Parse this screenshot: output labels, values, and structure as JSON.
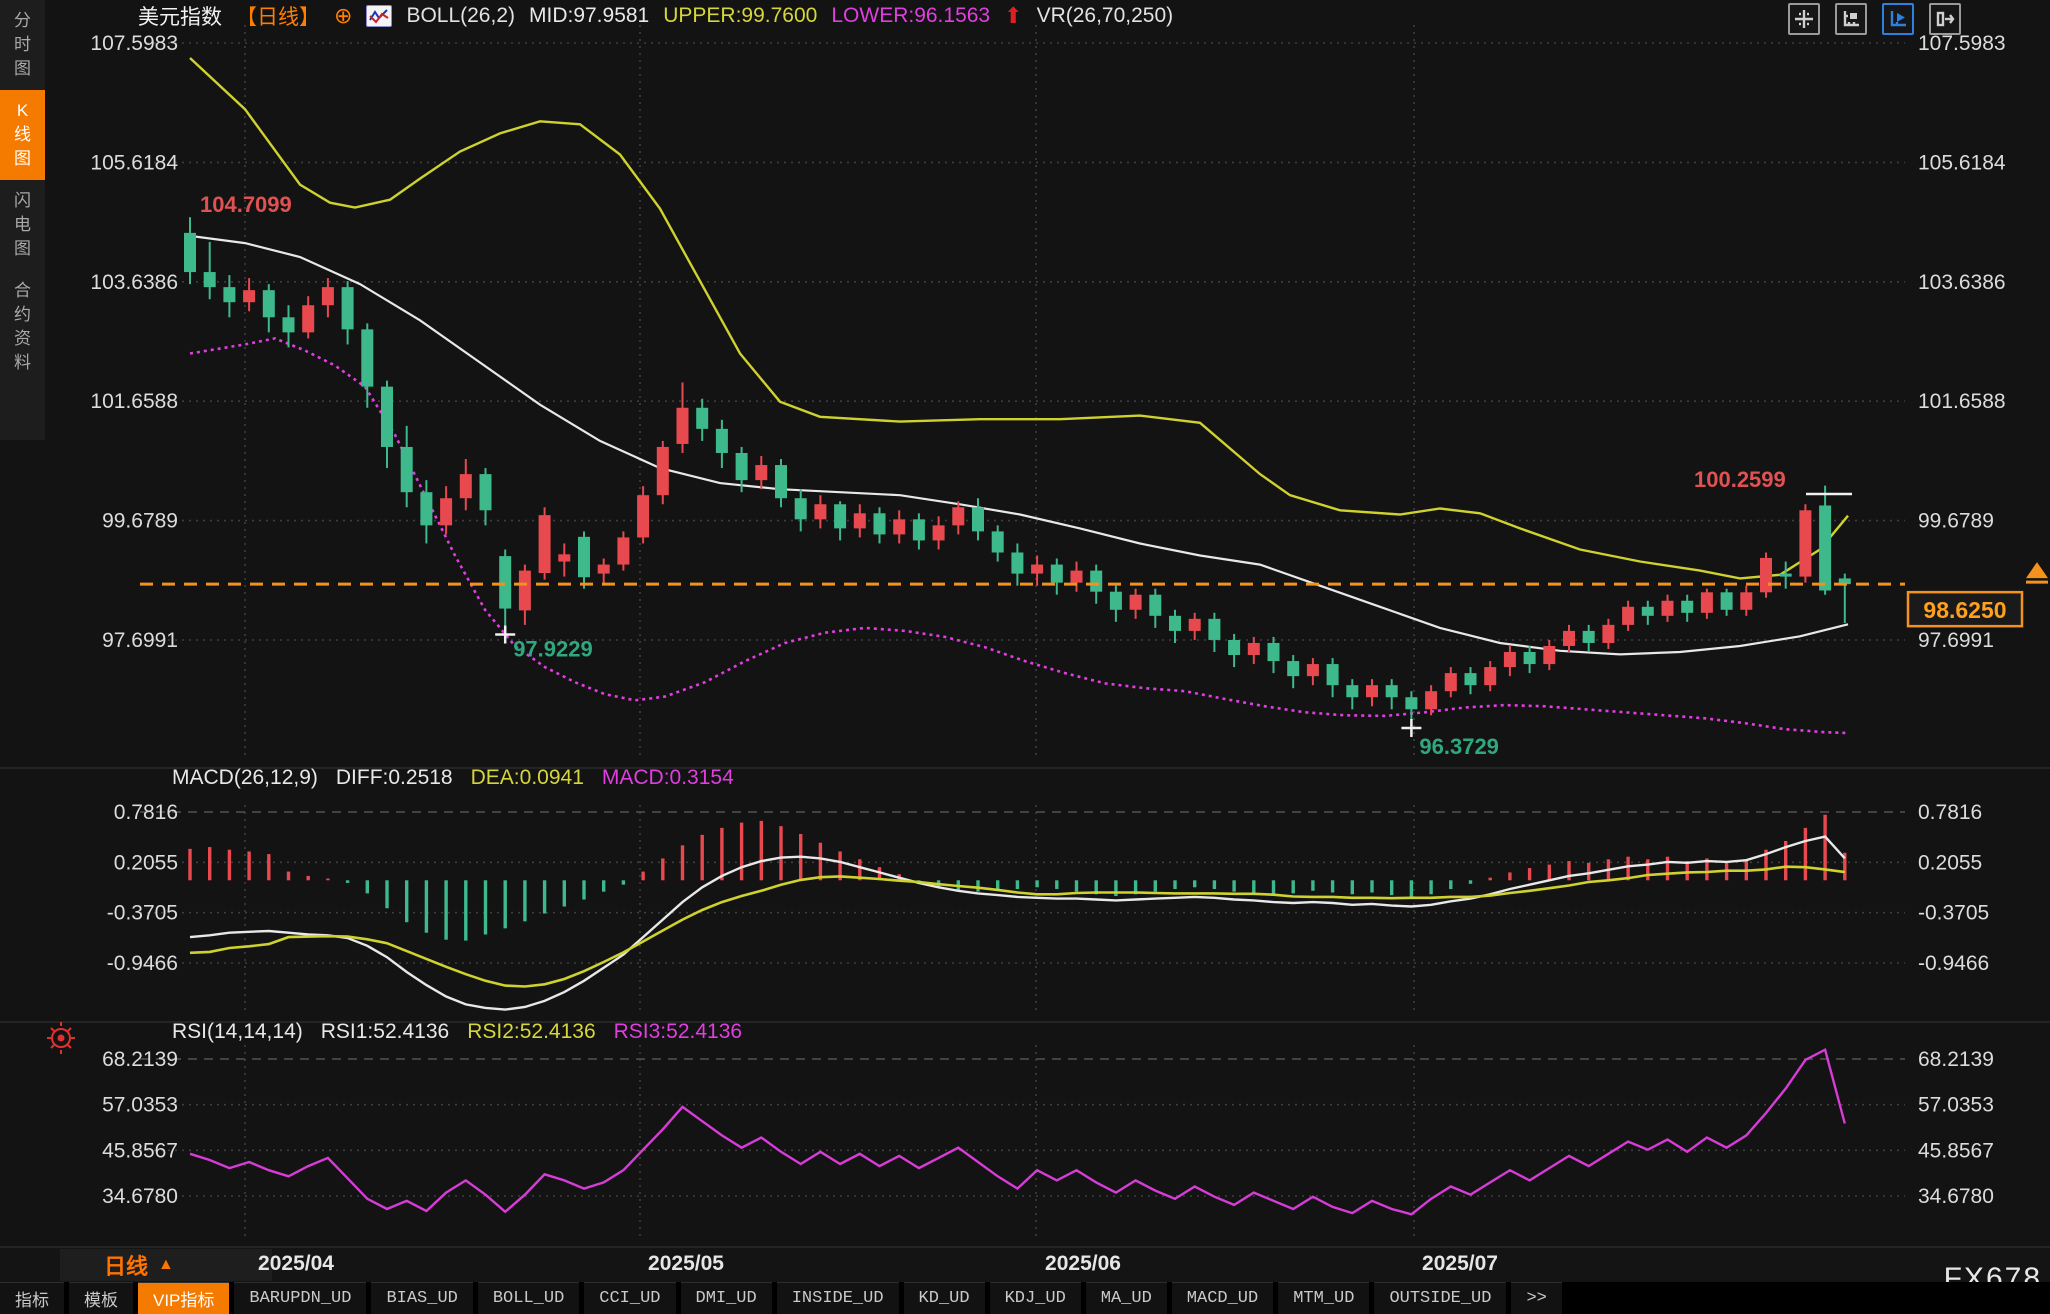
{
  "header": {
    "symbol": "美元指数",
    "period_tag": "【日线】",
    "boll_label": "BOLL(26,2)",
    "mid_label": "MID:97.9581",
    "upper_label": "UPPER:99.7600",
    "lower_label": "LOWER:96.1563",
    "vr_label": "VR(26,70,250)"
  },
  "toolbar": {
    "icons": [
      {
        "name": "crosshair-icon",
        "active": false
      },
      {
        "name": "axis-scale-icon",
        "active": false
      },
      {
        "name": "axis-play-icon",
        "active": true
      },
      {
        "name": "shift-right-icon",
        "active": false
      }
    ]
  },
  "sidebar": {
    "items": [
      {
        "label": "分时图",
        "active": false
      },
      {
        "label": "K线图",
        "active": true
      },
      {
        "label": "闪电图",
        "active": false
      },
      {
        "label": "合约资料",
        "active": false
      }
    ]
  },
  "macd_header": {
    "title": "MACD(26,12,9)",
    "diff_label": "DIFF:0.2518",
    "dea_label": "DEA:0.0941",
    "macd_label": "MACD:0.3154"
  },
  "rsi_header": {
    "title": "RSI(14,14,14)",
    "rsi1_label": "RSI1:52.4136",
    "rsi2_label": "RSI2:52.4136",
    "rsi3_label": "RSI3:52.4136"
  },
  "price_marker": {
    "value": "98.6250"
  },
  "footer": {
    "period_label": "日线",
    "period_arrow": "▲",
    "watermark": "FX678",
    "tabs": [
      {
        "label": "指标",
        "cn": true,
        "active": false
      },
      {
        "label": "模板",
        "cn": true,
        "active": false
      },
      {
        "label": "VIP指标",
        "cn": true,
        "active": true
      },
      {
        "label": "BARUPDN_UD",
        "cn": false,
        "active": false
      },
      {
        "label": "BIAS_UD",
        "cn": false,
        "active": false
      },
      {
        "label": "BOLL_UD",
        "cn": false,
        "active": false
      },
      {
        "label": "CCI_UD",
        "cn": false,
        "active": false
      },
      {
        "label": "DMI_UD",
        "cn": false,
        "active": false
      },
      {
        "label": "INSIDE_UD",
        "cn": false,
        "active": false
      },
      {
        "label": "KD_UD",
        "cn": false,
        "active": false
      },
      {
        "label": "KDJ_UD",
        "cn": false,
        "active": false
      },
      {
        "label": "MA_UD",
        "cn": false,
        "active": false
      },
      {
        "label": "MACD_UD",
        "cn": false,
        "active": false
      },
      {
        "label": "MTM_UD",
        "cn": false,
        "active": false
      },
      {
        "label": "OUTSIDE_UD",
        "cn": false,
        "active": false
      },
      {
        "label": ">>",
        "cn": false,
        "active": false
      }
    ]
  },
  "chart_data": {
    "type": "candlestick",
    "title": "美元指数 日线 BOLL(26,2) + MACD(26,12,9) + RSI(14,14,14)",
    "x_labels": [
      "2025/04",
      "2025/05",
      "2025/06",
      "2025/07"
    ],
    "price_axis_labels": [
      "107.5983",
      "105.6184",
      "103.6386",
      "101.6588",
      "99.6789",
      "97.6991"
    ],
    "macd_axis_labels": [
      "0.7816",
      "0.2055",
      "-0.3705",
      "-0.9466"
    ],
    "rsi_axis_labels": [
      "68.2139",
      "57.0353",
      "45.8567",
      "34.6780"
    ],
    "price_axis_range": [
      107.5983,
      97.6991
    ],
    "macd_axis_range": [
      0.7816,
      -0.9466
    ],
    "rsi_axis_range": [
      68.2139,
      34.678
    ],
    "last_price": 98.625,
    "annotations": {
      "high_start": "104.7099",
      "low1": "97.9229",
      "low2": "96.3729",
      "high_end": "100.2599",
      "last_price_label": "98.6250"
    },
    "candles": [
      [
        104.45,
        104.7099,
        103.6,
        103.8
      ],
      [
        103.8,
        104.3,
        103.35,
        103.55
      ],
      [
        103.55,
        103.75,
        103.05,
        103.3
      ],
      [
        103.3,
        103.7,
        103.15,
        103.5
      ],
      [
        103.5,
        103.6,
        102.8,
        103.05
      ],
      [
        103.05,
        103.25,
        102.55,
        102.8
      ],
      [
        102.8,
        103.4,
        102.7,
        103.25
      ],
      [
        103.25,
        103.7,
        103.05,
        103.55
      ],
      [
        103.55,
        103.65,
        102.6,
        102.85
      ],
      [
        102.85,
        102.95,
        101.55,
        101.9
      ],
      [
        101.9,
        102.0,
        100.55,
        100.9
      ],
      [
        100.9,
        101.25,
        99.9,
        100.15
      ],
      [
        100.15,
        100.35,
        99.3,
        99.6
      ],
      [
        99.6,
        100.25,
        99.45,
        100.05
      ],
      [
        100.05,
        100.7,
        99.85,
        100.45
      ],
      [
        100.45,
        100.55,
        99.6,
        99.85
      ],
      [
        99.09,
        99.2,
        97.9229,
        98.22
      ],
      [
        98.19,
        98.95,
        97.95,
        98.85
      ],
      [
        98.81,
        99.9,
        98.7,
        99.77
      ],
      [
        99.0,
        99.3,
        98.75,
        99.12
      ],
      [
        99.41,
        99.5,
        98.55,
        98.74
      ],
      [
        98.8,
        99.05,
        98.6,
        98.95
      ],
      [
        98.95,
        99.5,
        98.85,
        99.4
      ],
      [
        99.4,
        100.25,
        99.3,
        100.1
      ],
      [
        100.1,
        101.0,
        99.95,
        100.9
      ],
      [
        100.95,
        101.97,
        100.8,
        101.55
      ],
      [
        101.55,
        101.7,
        101.0,
        101.2
      ],
      [
        101.2,
        101.35,
        100.55,
        100.8
      ],
      [
        100.8,
        100.9,
        100.15,
        100.35
      ],
      [
        100.35,
        100.75,
        100.2,
        100.6
      ],
      [
        100.6,
        100.7,
        99.9,
        100.05
      ],
      [
        100.05,
        100.2,
        99.5,
        99.7
      ],
      [
        99.7,
        100.1,
        99.55,
        99.95
      ],
      [
        99.95,
        100.0,
        99.35,
        99.55
      ],
      [
        99.55,
        99.95,
        99.4,
        99.8
      ],
      [
        99.8,
        99.9,
        99.3,
        99.45
      ],
      [
        99.45,
        99.85,
        99.3,
        99.7
      ],
      [
        99.7,
        99.8,
        99.2,
        99.35
      ],
      [
        99.35,
        99.75,
        99.2,
        99.6
      ],
      [
        99.6,
        100.0,
        99.45,
        99.9
      ],
      [
        99.9,
        100.05,
        99.35,
        99.5
      ],
      [
        99.5,
        99.6,
        99.0,
        99.15
      ],
      [
        99.15,
        99.3,
        98.6,
        98.8
      ],
      [
        98.8,
        99.1,
        98.6,
        98.95
      ],
      [
        98.95,
        99.05,
        98.45,
        98.65
      ],
      [
        98.65,
        99.0,
        98.5,
        98.85
      ],
      [
        98.85,
        98.95,
        98.3,
        98.5
      ],
      [
        98.5,
        98.6,
        98.0,
        98.2
      ],
      [
        98.2,
        98.55,
        98.05,
        98.45
      ],
      [
        98.45,
        98.55,
        97.9,
        98.1
      ],
      [
        98.1,
        98.2,
        97.65,
        97.85
      ],
      [
        97.85,
        98.15,
        97.7,
        98.05
      ],
      [
        98.05,
        98.15,
        97.5,
        97.7
      ],
      [
        97.7,
        97.8,
        97.25,
        97.45
      ],
      [
        97.45,
        97.75,
        97.3,
        97.65
      ],
      [
        97.65,
        97.75,
        97.15,
        97.35
      ],
      [
        97.35,
        97.45,
        96.9,
        97.1
      ],
      [
        97.1,
        97.4,
        96.95,
        97.3
      ],
      [
        97.3,
        97.4,
        96.75,
        96.95
      ],
      [
        96.95,
        97.05,
        96.55,
        96.75
      ],
      [
        96.75,
        97.05,
        96.6,
        96.95
      ],
      [
        96.95,
        97.05,
        96.55,
        96.75
      ],
      [
        96.75,
        96.85,
        96.3729,
        96.55
      ],
      [
        96.55,
        96.95,
        96.45,
        96.85
      ],
      [
        96.85,
        97.25,
        96.75,
        97.15
      ],
      [
        97.15,
        97.25,
        96.8,
        96.95
      ],
      [
        96.95,
        97.35,
        96.85,
        97.25
      ],
      [
        97.25,
        97.6,
        97.1,
        97.5
      ],
      [
        97.5,
        97.6,
        97.15,
        97.3
      ],
      [
        97.3,
        97.7,
        97.2,
        97.6
      ],
      [
        97.6,
        97.95,
        97.5,
        97.85
      ],
      [
        97.85,
        97.95,
        97.5,
        97.65
      ],
      [
        97.65,
        98.05,
        97.55,
        97.95
      ],
      [
        97.95,
        98.35,
        97.85,
        98.25
      ],
      [
        98.25,
        98.35,
        97.95,
        98.1
      ],
      [
        98.1,
        98.45,
        98.0,
        98.35
      ],
      [
        98.35,
        98.45,
        98.0,
        98.15
      ],
      [
        98.15,
        98.55,
        98.05,
        98.49
      ],
      [
        98.49,
        98.55,
        98.1,
        98.2
      ],
      [
        98.2,
        98.6,
        98.1,
        98.49
      ],
      [
        98.49,
        99.15,
        98.4,
        99.06
      ],
      [
        98.8,
        99.0,
        98.55,
        98.75
      ],
      [
        98.75,
        99.95,
        98.65,
        99.85
      ],
      [
        99.93,
        100.2599,
        98.45,
        98.52
      ],
      [
        98.72,
        98.8,
        97.98,
        98.625
      ]
    ],
    "boll": {
      "mid": [
        [
          190,
          104.4
        ],
        [
          245,
          104.28
        ],
        [
          300,
          104.05
        ],
        [
          360,
          103.6
        ],
        [
          420,
          103.0
        ],
        [
          480,
          102.3
        ],
        [
          540,
          101.6
        ],
        [
          600,
          101.0
        ],
        [
          660,
          100.55
        ],
        [
          720,
          100.3
        ],
        [
          780,
          100.2
        ],
        [
          840,
          100.15
        ],
        [
          900,
          100.1
        ],
        [
          960,
          99.95
        ],
        [
          1020,
          99.78
        ],
        [
          1080,
          99.55
        ],
        [
          1140,
          99.3
        ],
        [
          1200,
          99.1
        ],
        [
          1260,
          98.95
        ],
        [
          1320,
          98.6
        ],
        [
          1380,
          98.25
        ],
        [
          1440,
          97.9
        ],
        [
          1500,
          97.65
        ],
        [
          1560,
          97.52
        ],
        [
          1620,
          97.46
        ],
        [
          1680,
          97.5
        ],
        [
          1740,
          97.6
        ],
        [
          1800,
          97.76
        ],
        [
          1848,
          97.96
        ]
      ],
      "upper": [
        [
          190,
          107.35
        ],
        [
          245,
          106.5
        ],
        [
          300,
          105.25
        ],
        [
          330,
          104.95
        ],
        [
          355,
          104.87
        ],
        [
          390,
          105.0
        ],
        [
          420,
          105.35
        ],
        [
          460,
          105.8
        ],
        [
          500,
          106.1
        ],
        [
          540,
          106.3
        ],
        [
          580,
          106.25
        ],
        [
          620,
          105.75
        ],
        [
          660,
          104.85
        ],
        [
          700,
          103.65
        ],
        [
          740,
          102.45
        ],
        [
          780,
          101.65
        ],
        [
          820,
          101.4
        ],
        [
          900,
          101.32
        ],
        [
          980,
          101.36
        ],
        [
          1060,
          101.36
        ],
        [
          1140,
          101.42
        ],
        [
          1200,
          101.3
        ],
        [
          1260,
          100.45
        ],
        [
          1290,
          100.1
        ],
        [
          1340,
          99.85
        ],
        [
          1400,
          99.78
        ],
        [
          1440,
          99.88
        ],
        [
          1480,
          99.8
        ],
        [
          1520,
          99.55
        ],
        [
          1580,
          99.2
        ],
        [
          1640,
          99.0
        ],
        [
          1700,
          98.85
        ],
        [
          1740,
          98.72
        ],
        [
          1780,
          98.78
        ],
        [
          1820,
          99.2
        ],
        [
          1848,
          99.76
        ]
      ],
      "lower": [
        [
          190,
          102.45
        ],
        [
          245,
          102.6
        ],
        [
          275,
          102.7
        ],
        [
          305,
          102.5
        ],
        [
          335,
          102.25
        ],
        [
          365,
          101.9
        ],
        [
          395,
          101.1
        ],
        [
          425,
          100.1
        ],
        [
          455,
          99.1
        ],
        [
          485,
          98.2
        ],
        [
          515,
          97.6
        ],
        [
          545,
          97.25
        ],
        [
          575,
          97.0
        ],
        [
          605,
          96.8
        ],
        [
          635,
          96.7
        ],
        [
          665,
          96.76
        ],
        [
          705,
          97.0
        ],
        [
          745,
          97.35
        ],
        [
          785,
          97.65
        ],
        [
          825,
          97.82
        ],
        [
          865,
          97.9
        ],
        [
          905,
          97.85
        ],
        [
          945,
          97.75
        ],
        [
          985,
          97.58
        ],
        [
          1025,
          97.35
        ],
        [
          1065,
          97.15
        ],
        [
          1105,
          96.98
        ],
        [
          1145,
          96.9
        ],
        [
          1185,
          96.85
        ],
        [
          1225,
          96.72
        ],
        [
          1265,
          96.6
        ],
        [
          1305,
          96.5
        ],
        [
          1345,
          96.45
        ],
        [
          1385,
          96.44
        ],
        [
          1425,
          96.5
        ],
        [
          1465,
          96.58
        ],
        [
          1505,
          96.62
        ],
        [
          1545,
          96.6
        ],
        [
          1585,
          96.55
        ],
        [
          1625,
          96.5
        ],
        [
          1665,
          96.45
        ],
        [
          1705,
          96.4
        ],
        [
          1745,
          96.32
        ],
        [
          1785,
          96.22
        ],
        [
          1825,
          96.17
        ],
        [
          1848,
          96.1563
        ]
      ]
    },
    "macd_hist": [
      0.36,
      0.38,
      0.35,
      0.33,
      0.3,
      0.1,
      0.05,
      0.02,
      -0.03,
      -0.15,
      -0.32,
      -0.48,
      -0.6,
      -0.68,
      -0.69,
      -0.62,
      -0.55,
      -0.47,
      -0.38,
      -0.3,
      -0.22,
      -0.13,
      -0.05,
      0.1,
      0.25,
      0.4,
      0.52,
      0.6,
      0.66,
      0.68,
      0.62,
      0.53,
      0.43,
      0.33,
      0.24,
      0.15,
      0.07,
      -0.02,
      -0.07,
      -0.11,
      -0.13,
      -0.12,
      -0.1,
      -0.08,
      -0.1,
      -0.13,
      -0.16,
      -0.18,
      -0.16,
      -0.13,
      -0.1,
      -0.08,
      -0.1,
      -0.13,
      -0.15,
      -0.17,
      -0.15,
      -0.12,
      -0.14,
      -0.16,
      -0.14,
      -0.17,
      -0.2,
      -0.16,
      -0.1,
      -0.04,
      0.03,
      0.09,
      0.14,
      0.18,
      0.22,
      0.2,
      0.24,
      0.27,
      0.24,
      0.27,
      0.22,
      0.25,
      0.2,
      0.24,
      0.35,
      0.45,
      0.6,
      0.75,
      0.3154
    ],
    "macd_diff": [
      -0.65,
      -0.63,
      -0.6,
      -0.59,
      -0.58,
      -0.6,
      -0.62,
      -0.63,
      -0.66,
      -0.75,
      -0.88,
      -1.05,
      -1.2,
      -1.33,
      -1.42,
      -1.46,
      -1.48,
      -1.45,
      -1.38,
      -1.28,
      -1.15,
      -1.0,
      -0.85,
      -0.65,
      -0.45,
      -0.25,
      -0.08,
      0.05,
      0.15,
      0.22,
      0.26,
      0.27,
      0.25,
      0.21,
      0.15,
      0.09,
      0.03,
      -0.03,
      -0.08,
      -0.12,
      -0.15,
      -0.17,
      -0.19,
      -0.2,
      -0.21,
      -0.21,
      -0.22,
      -0.23,
      -0.22,
      -0.21,
      -0.2,
      -0.19,
      -0.2,
      -0.22,
      -0.23,
      -0.25,
      -0.26,
      -0.25,
      -0.26,
      -0.28,
      -0.27,
      -0.29,
      -0.3,
      -0.28,
      -0.24,
      -0.21,
      -0.16,
      -0.1,
      -0.05,
      0.0,
      0.05,
      0.08,
      0.12,
      0.16,
      0.18,
      0.21,
      0.2,
      0.22,
      0.21,
      0.23,
      0.3,
      0.38,
      0.45,
      0.5,
      0.2518
    ],
    "rsi": [
      45,
      43.5,
      41.5,
      43,
      41,
      39.5,
      42,
      44,
      39,
      34,
      31.5,
      33.5,
      31,
      35.5,
      38.5,
      35,
      30.8,
      35,
      40,
      38.5,
      36.5,
      38,
      41,
      46,
      51,
      56.5,
      53,
      49.5,
      46.5,
      49,
      45.5,
      42.5,
      45.5,
      42.5,
      45,
      42,
      44.5,
      41.5,
      44,
      46.5,
      43,
      39.5,
      36.5,
      41,
      38.5,
      41,
      38,
      35.5,
      38.5,
      36,
      34,
      37,
      34.5,
      32.5,
      35.5,
      33.5,
      31.5,
      34.5,
      32,
      30.5,
      33.5,
      31.5,
      30.2,
      34,
      37,
      35,
      38,
      41,
      38.5,
      41.5,
      44.5,
      42,
      45,
      48,
      46,
      48.5,
      45.5,
      49,
      46.5,
      49.5,
      55,
      61,
      68,
      70.5,
      52.4136
    ],
    "colors": {
      "up": "#e8494e",
      "down": "#3db98c",
      "boll_mid": "#e8e8e8",
      "boll_upper": "#cfd22e",
      "boll_lower": "#e03ee0",
      "macd_diff_line": "#e8e8e8",
      "macd_dea_line": "#cfd22e",
      "rsi_line": "#d83cd8",
      "grid": "#3e3e3e",
      "last_price": "#f5921e",
      "annotation_up": "#e05252",
      "annotation_down": "#2fa87f",
      "axis_text": "#dcdcdc"
    }
  }
}
